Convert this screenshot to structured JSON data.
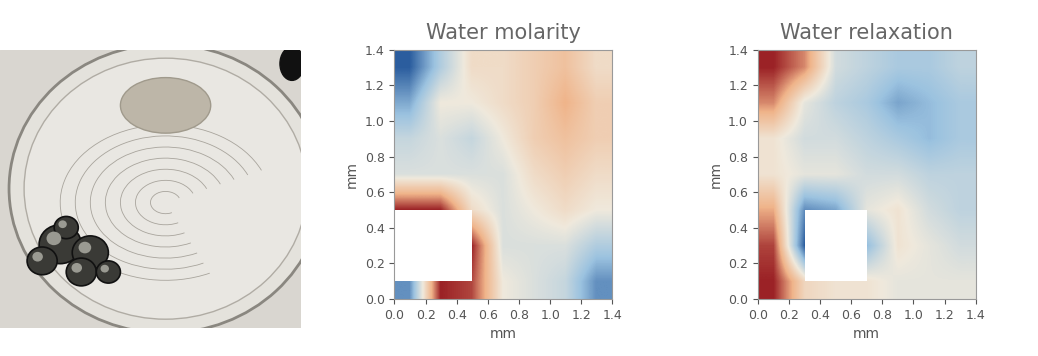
{
  "chart_data": [
    {
      "type": "heatmap",
      "title": "Water molarity",
      "x_label": "mm",
      "y_label": "mm",
      "xlim": [
        0.0,
        1.4
      ],
      "ylim": [
        0.0,
        1.4
      ],
      "xticks": [
        0.0,
        0.2,
        0.4,
        0.6,
        0.8,
        1.0,
        1.2,
        1.4
      ],
      "yticks": [
        0.0,
        0.2,
        0.4,
        0.6,
        0.8,
        1.0,
        1.2,
        1.4
      ],
      "cells": [
        [
          0.2,
          0.9,
          0.85,
          0.5,
          0.45,
          0.4,
          0.2
        ],
        [
          null,
          null,
          0.9,
          0.45,
          0.45,
          0.45,
          0.35
        ],
        [
          0.9,
          0.9,
          0.55,
          0.45,
          0.5,
          0.55,
          0.5
        ],
        [
          0.45,
          0.45,
          0.45,
          0.45,
          0.55,
          0.6,
          0.55
        ],
        [
          0.4,
          0.45,
          0.4,
          0.5,
          0.6,
          0.65,
          0.6
        ],
        [
          0.25,
          0.5,
          0.5,
          0.55,
          0.6,
          0.7,
          0.6
        ],
        [
          0.1,
          0.35,
          0.55,
          0.55,
          0.6,
          0.65,
          0.55
        ]
      ]
    },
    {
      "type": "heatmap",
      "title": "Water relaxation",
      "x_label": "mm",
      "y_label": "mm",
      "xlim": [
        0.0,
        1.4
      ],
      "ylim": [
        0.0,
        1.4
      ],
      "xticks": [
        0.0,
        0.2,
        0.4,
        0.6,
        0.8,
        1.0,
        1.2,
        1.4
      ],
      "yticks": [
        0.0,
        0.2,
        0.4,
        0.6,
        0.8,
        1.0,
        1.2,
        1.4
      ],
      "cells": [
        [
          0.95,
          0.6,
          0.55,
          0.55,
          0.5,
          0.5,
          0.5
        ],
        [
          0.9,
          0.1,
          null,
          0.3,
          0.55,
          0.5,
          0.45
        ],
        [
          0.75,
          0.2,
          0.25,
          0.5,
          0.55,
          0.45,
          0.4
        ],
        [
          0.55,
          0.5,
          0.5,
          0.45,
          0.45,
          0.4,
          0.4
        ],
        [
          0.55,
          0.45,
          0.45,
          0.4,
          0.35,
          0.3,
          0.35
        ],
        [
          0.8,
          0.5,
          0.4,
          0.35,
          0.25,
          0.3,
          0.35
        ],
        [
          0.95,
          0.8,
          0.45,
          0.4,
          0.35,
          0.35,
          0.4
        ]
      ]
    }
  ]
}
